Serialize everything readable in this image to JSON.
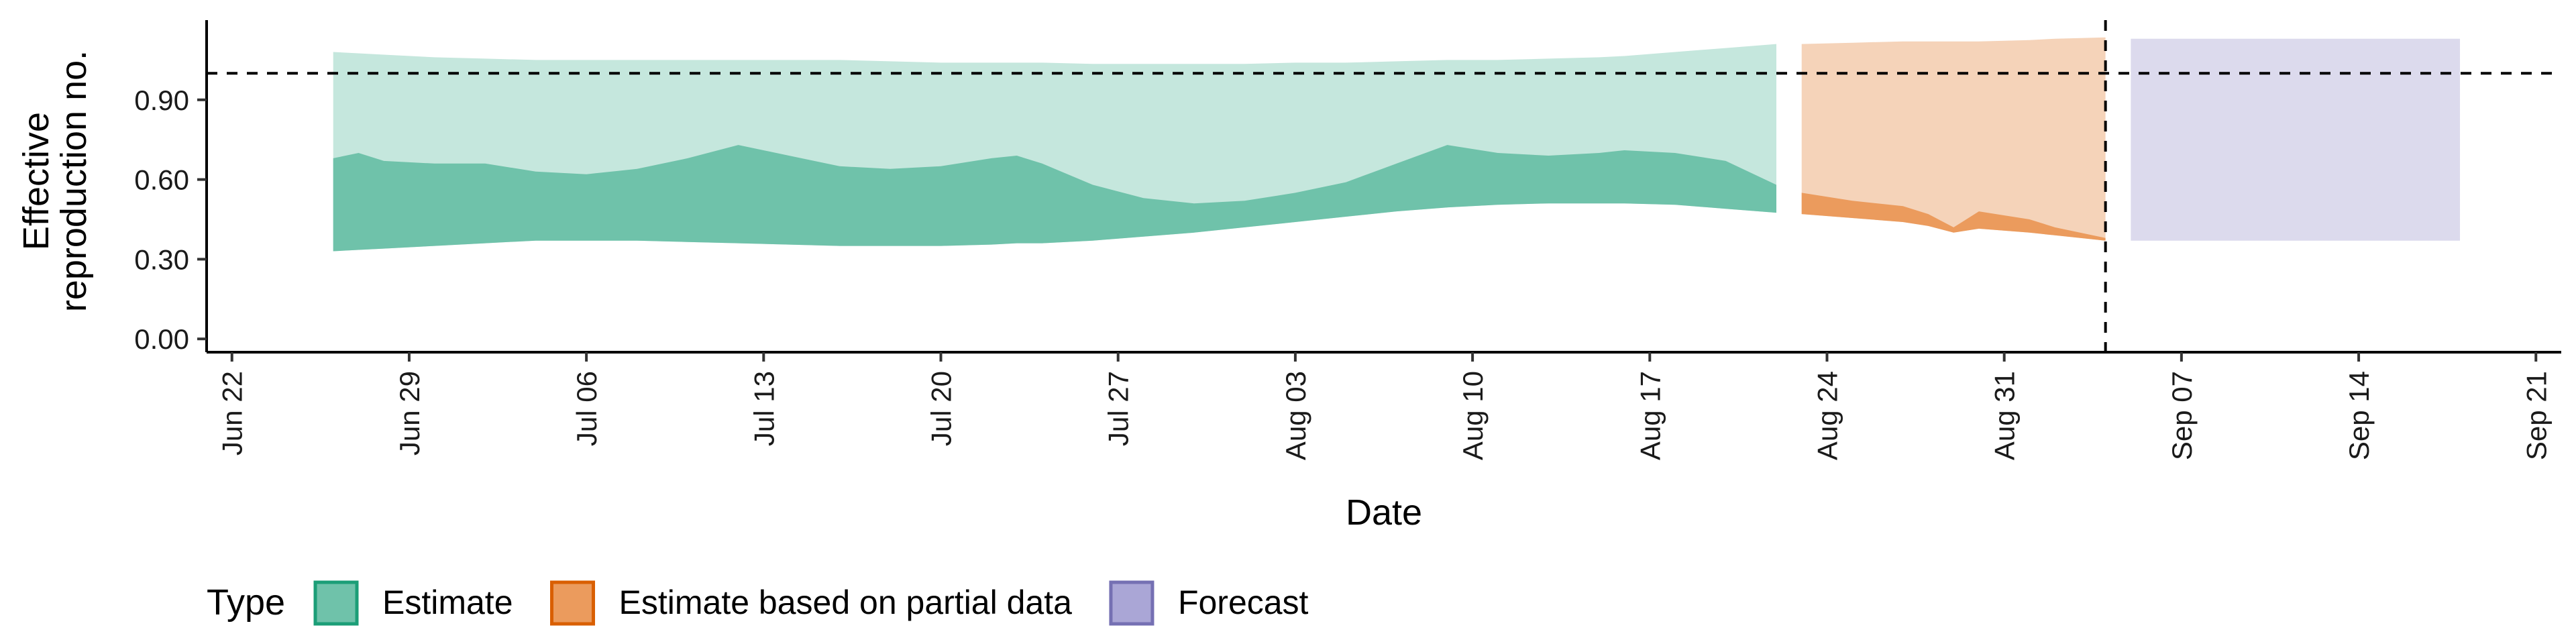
{
  "chart_data": {
    "type": "area",
    "xlabel": "Date",
    "ylabel_lines": [
      "Effective",
      "reproduction no."
    ],
    "x_ticks": [
      "2020-06-22",
      "2020-06-29",
      "2020-07-06",
      "2020-07-13",
      "2020-07-20",
      "2020-07-27",
      "2020-08-03",
      "2020-08-10",
      "2020-08-17",
      "2020-08-24",
      "2020-08-31",
      "2020-09-07",
      "2020-09-14",
      "2020-09-21"
    ],
    "x_tick_labels": [
      "Jun 22",
      "Jun 29",
      "Jul 06",
      "Jul 13",
      "Jul 20",
      "Jul 27",
      "Aug 03",
      "Aug 10",
      "Aug 17",
      "Aug 24",
      "Aug 31",
      "Sep 07",
      "Sep 14",
      "Sep 21"
    ],
    "xlim": [
      "2020-06-21",
      "2020-09-22"
    ],
    "ylim": [
      -0.05,
      1.2
    ],
    "y_ticks": [
      0.0,
      0.3,
      0.6,
      0.9
    ],
    "y_tick_labels": [
      "0.00",
      "0.30",
      "0.60",
      "0.90"
    ],
    "reference_lines": {
      "horizontal_y": 1.0,
      "vertical_x": "2020-09-04"
    },
    "legend": {
      "position": "bottom",
      "title": "Type",
      "items": [
        {
          "label": "Estimate",
          "fill": "#6fc2aa",
          "stroke": "#1b9e77"
        },
        {
          "label": "Estimate based on partial data",
          "fill": "#eb9b5d",
          "stroke": "#d95f02"
        },
        {
          "label": "Forecast",
          "fill": "#aaa6d6",
          "stroke": "#7570b3"
        }
      ]
    },
    "series": [
      {
        "name": "Estimate",
        "color_outer": "#c5e7dd",
        "color_inner": "#6fc2aa",
        "x": [
          "2020-06-26",
          "2020-06-27",
          "2020-06-28",
          "2020-06-30",
          "2020-07-02",
          "2020-07-04",
          "2020-07-06",
          "2020-07-08",
          "2020-07-10",
          "2020-07-12",
          "2020-07-14",
          "2020-07-16",
          "2020-07-18",
          "2020-07-20",
          "2020-07-22",
          "2020-07-23",
          "2020-07-24",
          "2020-07-26",
          "2020-07-28",
          "2020-07-30",
          "2020-08-01",
          "2020-08-03",
          "2020-08-05",
          "2020-08-07",
          "2020-08-09",
          "2020-08-11",
          "2020-08-13",
          "2020-08-15",
          "2020-08-16",
          "2020-08-18",
          "2020-08-20",
          "2020-08-22"
        ],
        "lower_90": [
          0.33,
          0.335,
          0.34,
          0.35,
          0.36,
          0.37,
          0.37,
          0.37,
          0.365,
          0.36,
          0.355,
          0.35,
          0.35,
          0.35,
          0.355,
          0.36,
          0.36,
          0.37,
          0.385,
          0.4,
          0.42,
          0.44,
          0.46,
          0.48,
          0.495,
          0.505,
          0.51,
          0.51,
          0.51,
          0.505,
          0.49,
          0.475
        ],
        "upper_90": [
          1.08,
          1.075,
          1.07,
          1.06,
          1.055,
          1.05,
          1.05,
          1.05,
          1.05,
          1.05,
          1.05,
          1.05,
          1.045,
          1.04,
          1.04,
          1.04,
          1.04,
          1.035,
          1.035,
          1.035,
          1.035,
          1.04,
          1.04,
          1.045,
          1.05,
          1.05,
          1.055,
          1.06,
          1.065,
          1.08,
          1.095,
          1.11
        ],
        "lower_50": [
          0.33,
          0.335,
          0.34,
          0.35,
          0.36,
          0.37,
          0.37,
          0.37,
          0.365,
          0.36,
          0.355,
          0.35,
          0.35,
          0.35,
          0.355,
          0.36,
          0.36,
          0.37,
          0.385,
          0.4,
          0.42,
          0.44,
          0.46,
          0.48,
          0.495,
          0.505,
          0.51,
          0.51,
          0.51,
          0.505,
          0.49,
          0.475
        ],
        "upper_50": [
          0.68,
          0.7,
          0.67,
          0.66,
          0.66,
          0.63,
          0.62,
          0.64,
          0.68,
          0.73,
          0.69,
          0.65,
          0.64,
          0.65,
          0.68,
          0.69,
          0.66,
          0.58,
          0.53,
          0.51,
          0.52,
          0.55,
          0.59,
          0.66,
          0.73,
          0.7,
          0.69,
          0.7,
          0.71,
          0.7,
          0.67,
          0.58
        ]
      },
      {
        "name": "Estimate based on partial data",
        "color_outer": "#f5d3b9",
        "color_inner": "#eb9b5d",
        "x": [
          "2020-08-23",
          "2020-08-25",
          "2020-08-27",
          "2020-08-28",
          "2020-08-29",
          "2020-08-30",
          "2020-09-01",
          "2020-09-02",
          "2020-09-04"
        ],
        "lower_90": [
          0.47,
          0.455,
          0.44,
          0.425,
          0.4,
          0.415,
          0.4,
          0.39,
          0.37
        ],
        "upper_90": [
          1.11,
          1.115,
          1.12,
          1.12,
          1.12,
          1.12,
          1.125,
          1.13,
          1.135
        ],
        "lower_50": [
          0.47,
          0.455,
          0.44,
          0.425,
          0.4,
          0.415,
          0.4,
          0.39,
          0.37
        ],
        "upper_50": [
          0.55,
          0.52,
          0.5,
          0.47,
          0.42,
          0.48,
          0.45,
          0.42,
          0.38
        ]
      },
      {
        "name": "Forecast",
        "color_outer": "#dcdaed",
        "x": [
          "2020-09-05",
          "2020-09-18"
        ],
        "lower_90": [
          0.37,
          0.37
        ],
        "upper_90": [
          1.13,
          1.13
        ]
      }
    ]
  }
}
